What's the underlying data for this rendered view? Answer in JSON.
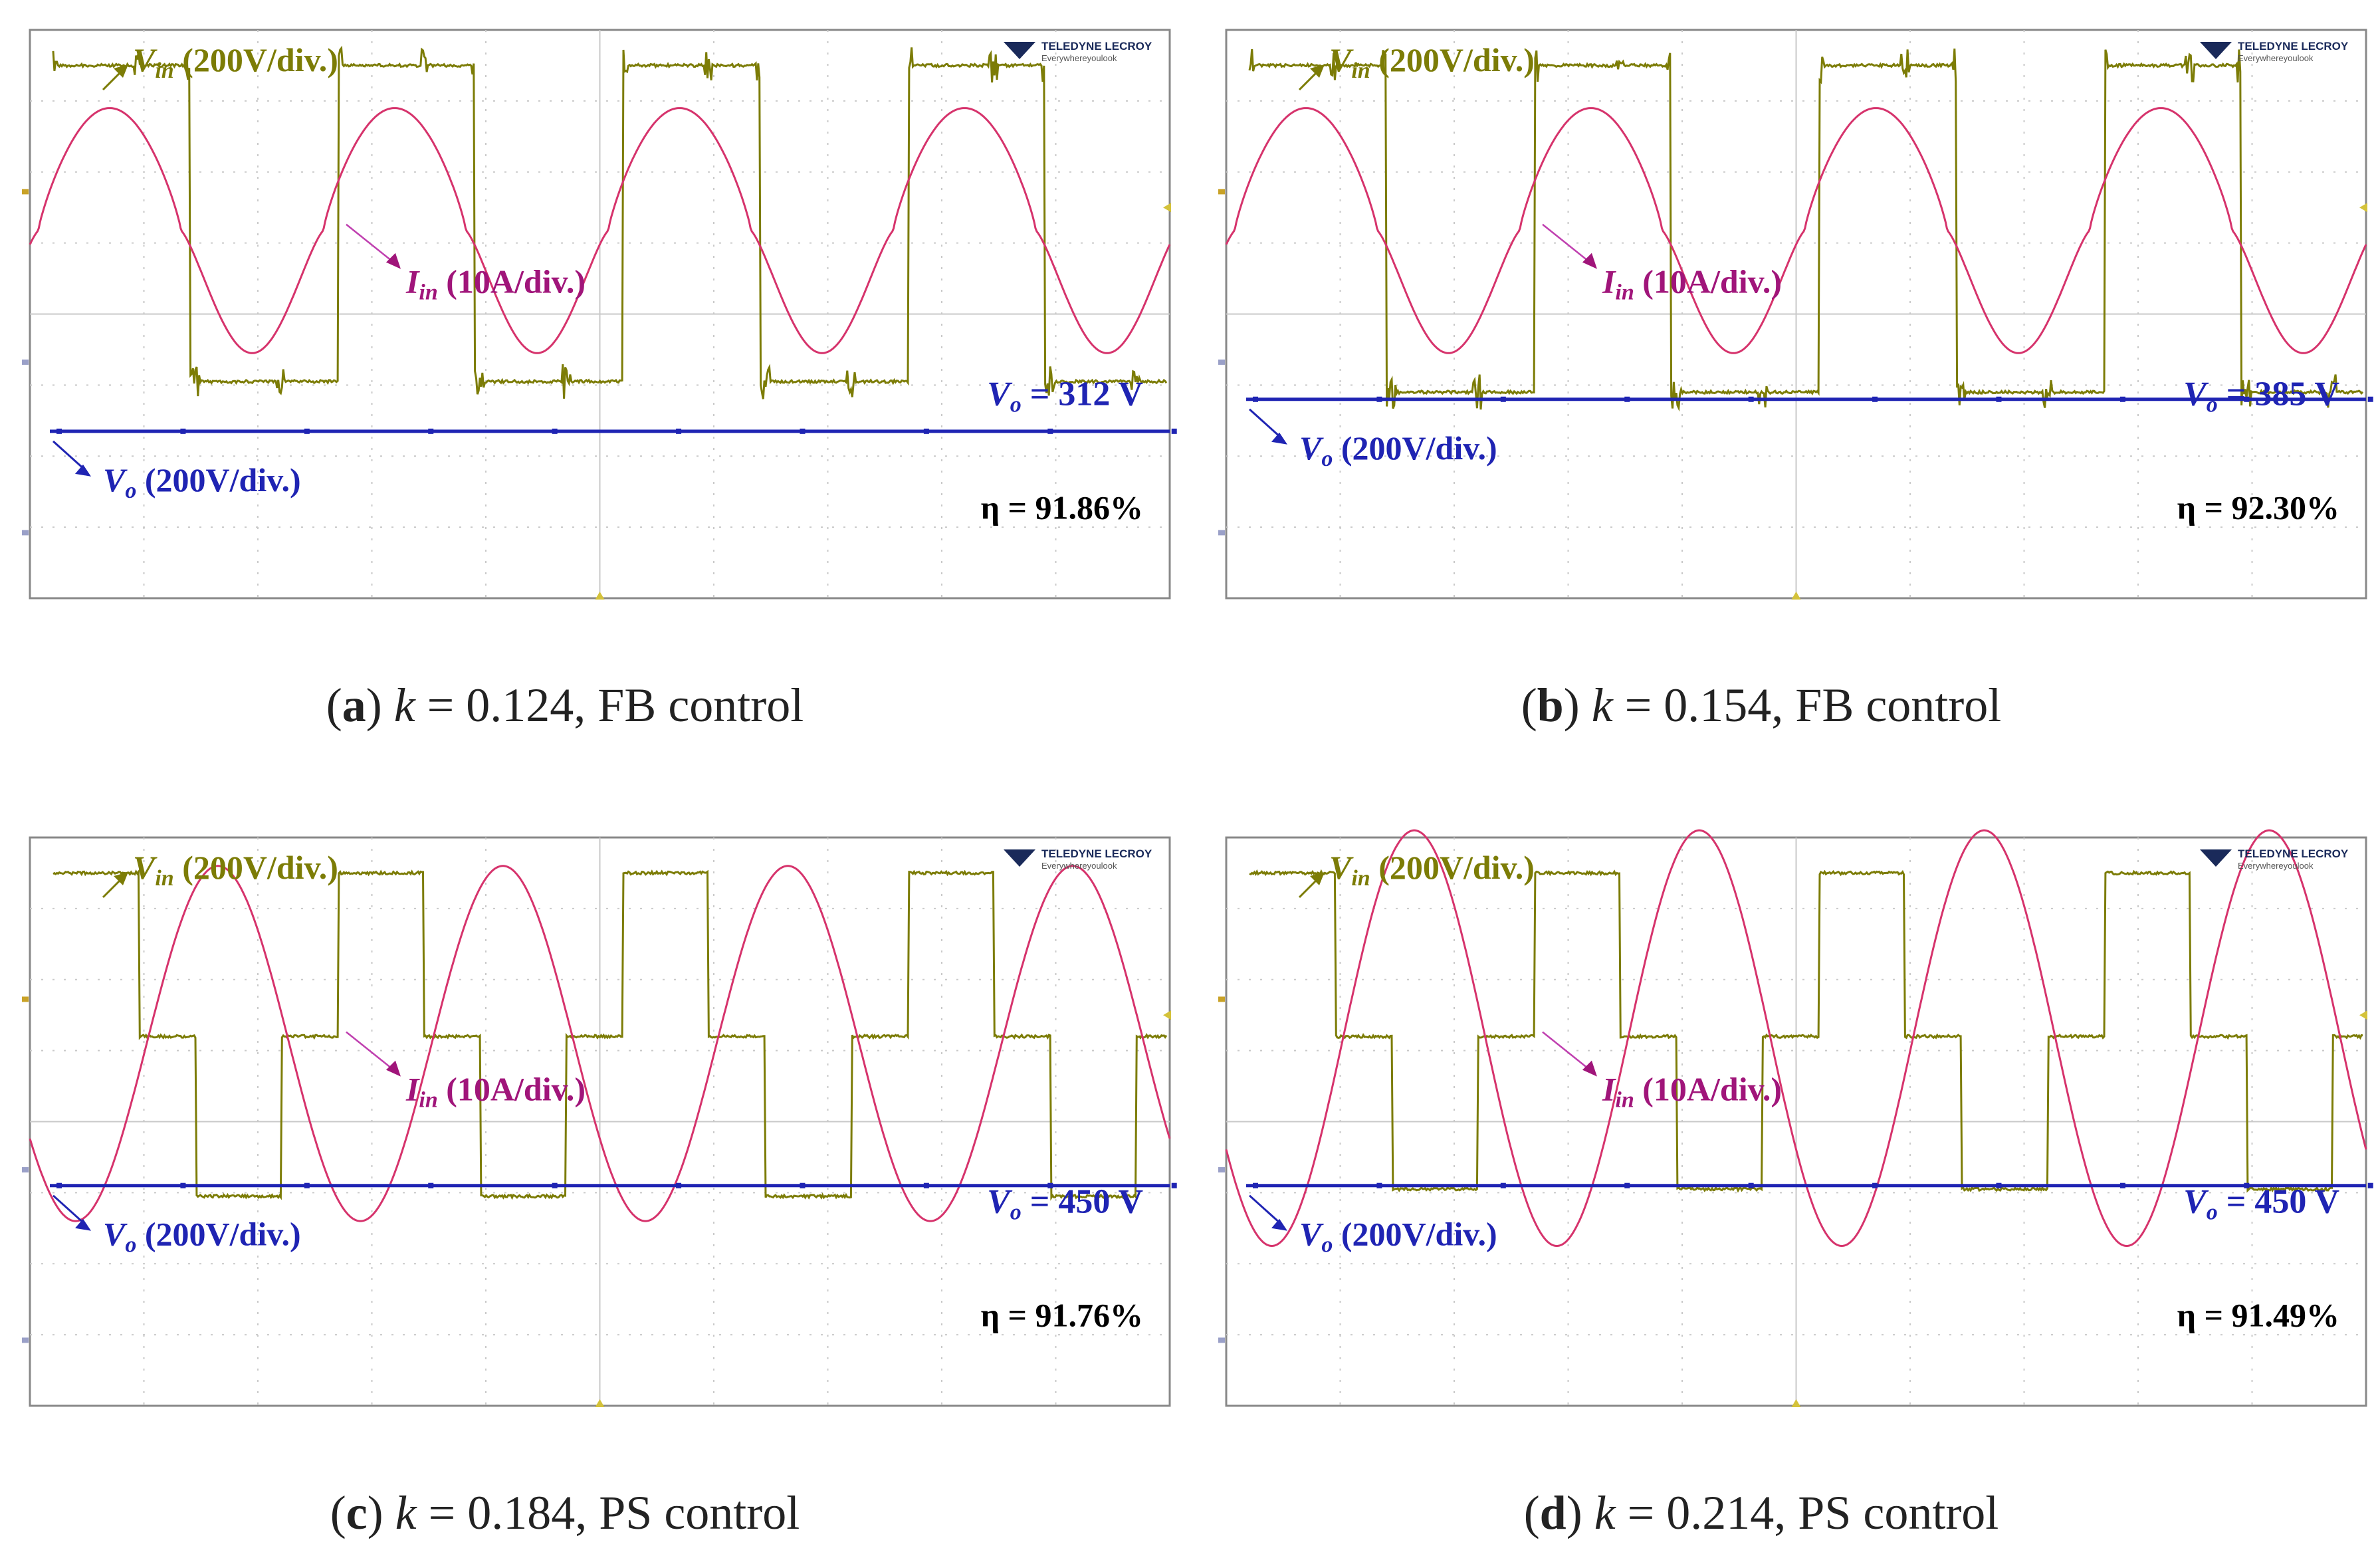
{
  "figure": {
    "colors": {
      "vin": "#7c7c06",
      "iin": "#d6336c",
      "vo": "#1f24b3",
      "iin_label": "#a0157a",
      "grid": "#c9c9c9",
      "frame": "#888888",
      "logo": "#1a2a5a"
    },
    "logo": {
      "brand": "TELEDYNE LECROY",
      "tagline": "Everywhereyoulook"
    },
    "labels": {
      "vin_sym": "V",
      "vin_sub": "in",
      "vin_scale": " (200V/div.)",
      "iin_sym": "I",
      "iin_sub": "in",
      "iin_scale": " (10A/div.)",
      "vo_sym": "V",
      "vo_sub": "o",
      "vo_scale": " (200V/div.)",
      "vo_eq_sym": "V",
      "vo_eq_sub": "o",
      "eta_sym": "η"
    }
  },
  "chart_data": [
    {
      "type": "line",
      "panel": "a",
      "caption_letter": "a",
      "caption_k": "k",
      "caption_rest": " = 0.124, FB control",
      "vo_value": " = 312 V",
      "eta_value": " = 91.86%",
      "grid": true,
      "series": [
        {
          "name": "Vin (200V/div.)",
          "waveform": "square",
          "high_div": 3.5,
          "low_div": -0.95,
          "periods": 4,
          "duty": 0.48
        },
        {
          "name": "Iin (10A/div.)",
          "waveform": "resonant",
          "peak_div": 2.9,
          "trough_div": -0.55,
          "periods": 4
        },
        {
          "name": "Vo (200V/div.)",
          "level_div": -1.65
        }
      ]
    },
    {
      "type": "line",
      "panel": "b",
      "caption_letter": "b",
      "caption_k": "k",
      "caption_rest": " = 0.154, FB control",
      "vo_value": " = 385 V",
      "eta_value": " = 92.30%",
      "grid": true,
      "series": [
        {
          "name": "Vin (200V/div.)",
          "waveform": "square",
          "high_div": 3.5,
          "low_div": -1.1,
          "periods": 4,
          "duty": 0.48
        },
        {
          "name": "Iin (10A/div.)",
          "waveform": "resonant",
          "peak_div": 2.9,
          "trough_div": -0.55,
          "periods": 4
        },
        {
          "name": "Vo (200V/div.)",
          "level_div": -1.2
        }
      ]
    },
    {
      "type": "line",
      "panel": "c",
      "caption_letter": "c",
      "caption_k": "k",
      "caption_rest": " = 0.184, PS control",
      "vo_value": " = 450 V",
      "eta_value": " = 91.76%",
      "grid": true,
      "series": [
        {
          "name": "Vin (200V/div.)",
          "waveform": "phase-shift",
          "high_div": 3.5,
          "zero_div": 1.2,
          "low_div": -1.05,
          "periods": 4
        },
        {
          "name": "Iin (10A/div.)",
          "waveform": "triangular",
          "peak_div": 3.6,
          "trough_div": -1.4,
          "periods": 4
        },
        {
          "name": "Vo (200V/div.)",
          "level_div": -0.9
        }
      ]
    },
    {
      "type": "line",
      "panel": "d",
      "caption_letter": "d",
      "caption_k": "k",
      "caption_rest": " = 0.214, PS control",
      "vo_value": " = 450 V",
      "eta_value": " = 91.49%",
      "grid": true,
      "series": [
        {
          "name": "Vin (200V/div.)",
          "waveform": "phase-shift",
          "high_div": 3.5,
          "zero_div": 1.2,
          "low_div": -0.95,
          "periods": 4
        },
        {
          "name": "Iin (10A/div.)",
          "waveform": "triangular",
          "peak_div": 4.1,
          "trough_div": -1.75,
          "periods": 4
        },
        {
          "name": "Vo (200V/div.)",
          "level_div": -0.9
        }
      ]
    }
  ]
}
